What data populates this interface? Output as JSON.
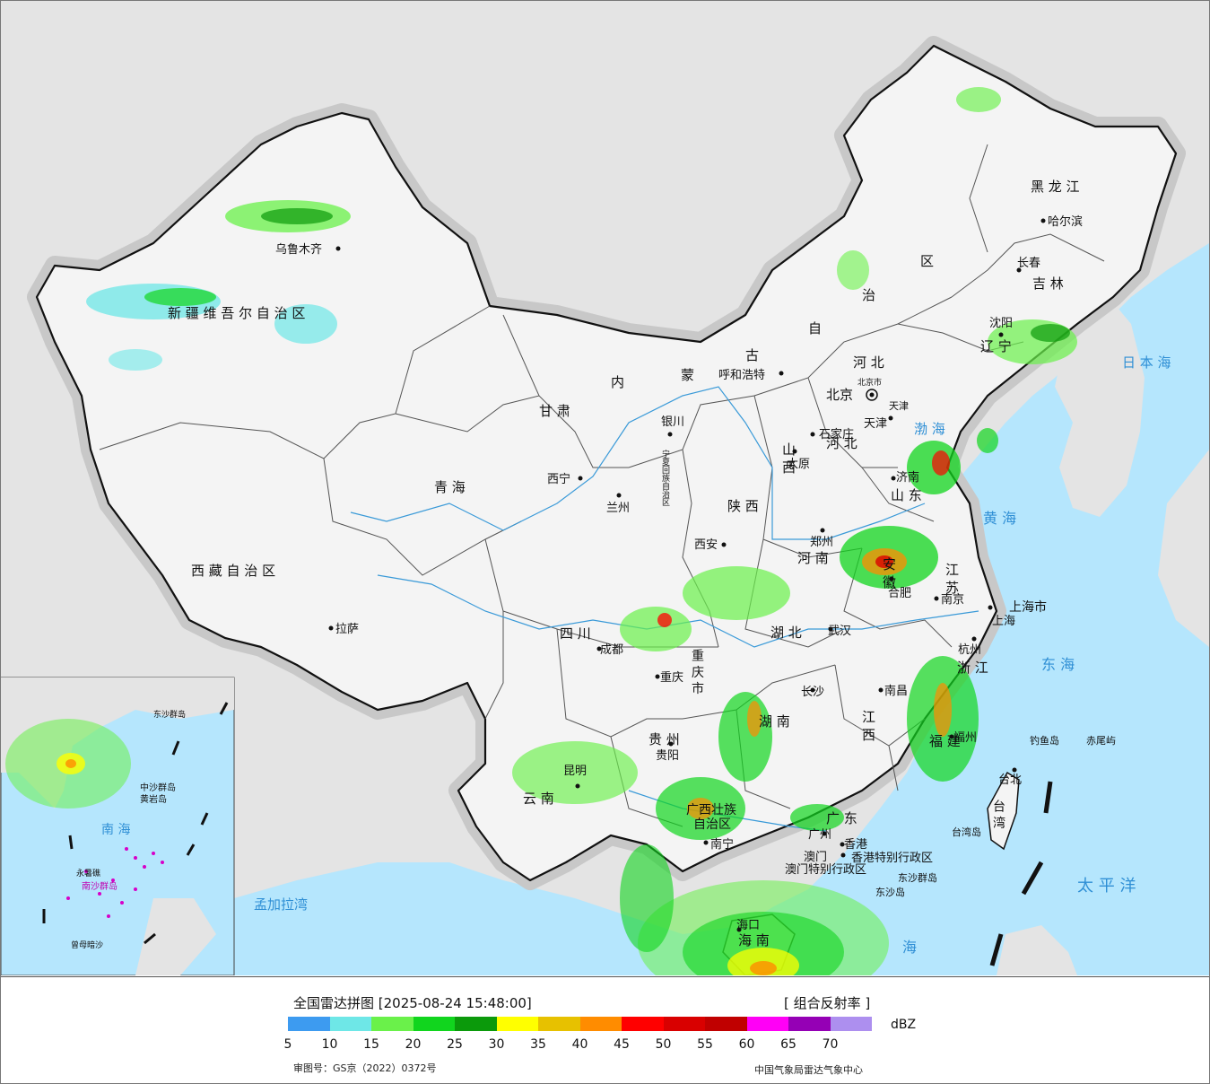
{
  "title": "全国雷达拼图 [2025-08-24 15:48:00]",
  "product": "[ 组合反射率 ]",
  "unit": "dBZ",
  "approval": "审图号：GS京（2022）0372号",
  "organization": "中国气象局雷达气象中心",
  "legend": {
    "colors": [
      "#3d9bf0",
      "#6ee7e7",
      "#6af14a",
      "#11d51e",
      "#0b9a0b",
      "#ffff00",
      "#e7c100",
      "#ff8c00",
      "#ff0000",
      "#d90000",
      "#c00000",
      "#ff00f6",
      "#9500b5",
      "#ad8fef"
    ],
    "ticks": [
      "5",
      "10",
      "15",
      "20",
      "25",
      "30",
      "35",
      "40",
      "45",
      "50",
      "55",
      "60",
      "65",
      "70"
    ]
  },
  "labels": {
    "xinjiang": "新 疆 维 吾 尔 自 治 区",
    "urumqi": "乌鲁木齐",
    "tibet": "西 藏 自 治 区",
    "lhasa": "拉萨",
    "qinghai": "青  海",
    "xining": "西宁",
    "gansu": "甘 肃",
    "lanzhou": "兰州",
    "ningxia": "宁夏回族自治区",
    "yinchuan": "银川",
    "neimenggu": [
      "内",
      "蒙",
      "古",
      "自",
      "治",
      "区"
    ],
    "huhehaote": "呼和浩特",
    "heilongjiang": "黑 龙 江",
    "harbin": "哈尔滨",
    "jilin": "吉 林",
    "changchun": "长春",
    "liaoning": "辽 宁",
    "shenyang": "沈阳",
    "beijing": "北京",
    "beijing_city": "北京市",
    "tianjin": "天津",
    "tianjin_city": "天津",
    "hebei": "河 北",
    "shijiazhuang": "石家庄",
    "shanxi": "山 西",
    "taiyuan": "太原",
    "shandong": "山 东",
    "jinan": "济南",
    "shaanxi": "陕 西",
    "xian": "西安",
    "henan": "河 南",
    "zhengzhou": "郑州",
    "jiangsu": "江 苏",
    "nanjing": "南京",
    "anhui": "安 徽",
    "hefei": "合肥",
    "shanghai_city": "上海市",
    "shanghai": "上海",
    "zhejiang": "浙 江",
    "hangzhou": "杭州",
    "hubei": "湖 北",
    "wuhan": "武汉",
    "sichuan": "四 川",
    "chengdu": "成都",
    "chongqing_city": "重 庆 市",
    "chongqing": "重庆",
    "hunan": "湖 南",
    "changsha": "长沙",
    "jiangxi": "江 西",
    "nanchang": "南昌",
    "fujian": "福 建",
    "fuzhou": "福州",
    "guizhou": "贵 州",
    "guiyang": "贵阳",
    "yunnan": "云 南",
    "kunming": "昆明",
    "guangxi": "广西壮族",
    "guangxi2": "自治区",
    "nanning": "南宁",
    "guangdong": "广 东",
    "guangzhou": "广州",
    "hongkong": "香港",
    "hk_sar": "香港特别行政区",
    "macau": "澳门",
    "macau_sar": "澳门特别行政区",
    "hainan": "海 南",
    "haikou": "海口",
    "taiwan": "台 湾",
    "taibei": "台北",
    "taiwan_strait": "台湾岛",
    "diaoyu": "钓鱼岛",
    "chiwei": "赤尾屿",
    "dongsha_islands": "东沙群岛",
    "dongsha": "东沙岛",
    "bohai": "渤 海",
    "yellow_sea": "黄  海",
    "east_sea": "东  海",
    "pacific": "太  平  洋",
    "japan_sea": "日 本 海",
    "south_sea": "海",
    "bengal": "孟加拉湾",
    "inset_south_sea": "南  海",
    "inset_zhongsha": "中沙群岛",
    "inset_huangyan": "黄岩岛",
    "inset_nansha": "南沙群岛",
    "inset_yongshu": "永暑礁",
    "inset_zengmu": "曾母暗沙",
    "inset_dongsha": "东沙群岛"
  }
}
